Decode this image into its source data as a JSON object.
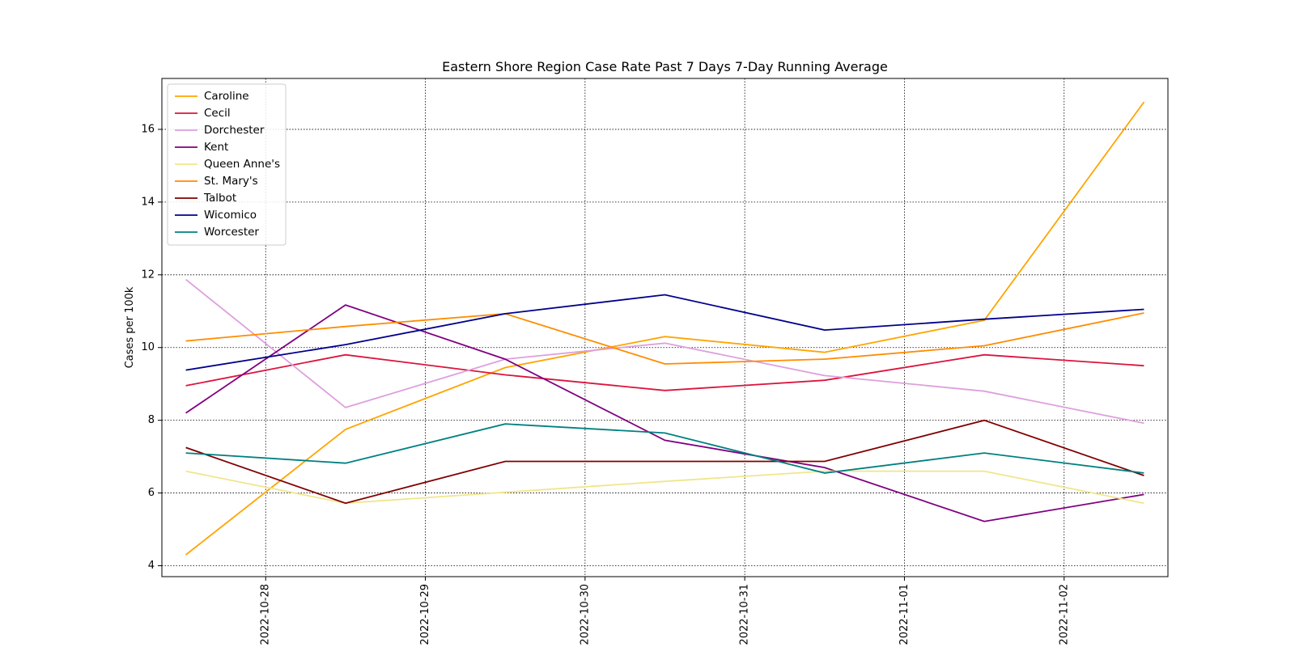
{
  "chart_data": {
    "type": "line",
    "title": "Eastern Shore Region Case Rate  Past 7 Days 7-Day Running Average",
    "xlabel": "",
    "ylabel": "Cases per 100k",
    "x": [
      "2022-10-27T12:00",
      "2022-10-28T12:00",
      "2022-10-29T12:00",
      "2022-10-30T12:00",
      "2022-10-31T12:00",
      "2022-11-01T12:00",
      "2022-11-02T12:00"
    ],
    "xticks": [
      "2022-10-28",
      "2022-10-29",
      "2022-10-30",
      "2022-10-31",
      "2022-11-01",
      "2022-11-02"
    ],
    "xlim": [
      "2022-10-27T08:24",
      "2022-11-02T15:36"
    ],
    "ylim": [
      3.7,
      17.4
    ],
    "yticks": [
      4,
      6,
      8,
      10,
      12,
      14,
      16
    ],
    "grid": true,
    "legend_position": "top-left",
    "series": [
      {
        "name": "Caroline",
        "color": "#FFA500",
        "values": [
          4.3,
          7.75,
          9.45,
          10.3,
          9.87,
          10.75,
          16.75
        ]
      },
      {
        "name": "Cecil",
        "color": "#DC143C",
        "values": [
          8.95,
          9.8,
          9.25,
          8.82,
          9.1,
          9.8,
          9.5
        ]
      },
      {
        "name": "Dorchester",
        "color": "#DDA0DD",
        "values": [
          11.87,
          8.35,
          9.68,
          10.12,
          9.23,
          8.8,
          7.92
        ]
      },
      {
        "name": "Kent",
        "color": "#800080",
        "values": [
          8.2,
          11.17,
          9.68,
          7.45,
          6.7,
          5.22,
          5.96
        ]
      },
      {
        "name": "Queen Anne's",
        "color": "#F0E68C",
        "values": [
          6.6,
          5.72,
          6.02,
          6.32,
          6.6,
          6.6,
          5.72
        ]
      },
      {
        "name": "St. Mary's",
        "color": "#FF8C00",
        "values": [
          10.18,
          10.58,
          10.93,
          9.55,
          9.68,
          10.05,
          10.95
        ]
      },
      {
        "name": "Talbot",
        "color": "#800000",
        "values": [
          7.25,
          5.72,
          6.87,
          6.87,
          6.87,
          8.0,
          6.48
        ]
      },
      {
        "name": "Wicomico",
        "color": "#00008B",
        "values": [
          9.38,
          10.08,
          10.93,
          11.45,
          10.48,
          10.78,
          11.05
        ]
      },
      {
        "name": "Worcester",
        "color": "#008080",
        "values": [
          7.1,
          6.82,
          7.9,
          7.65,
          6.55,
          7.1,
          6.55
        ]
      }
    ]
  }
}
